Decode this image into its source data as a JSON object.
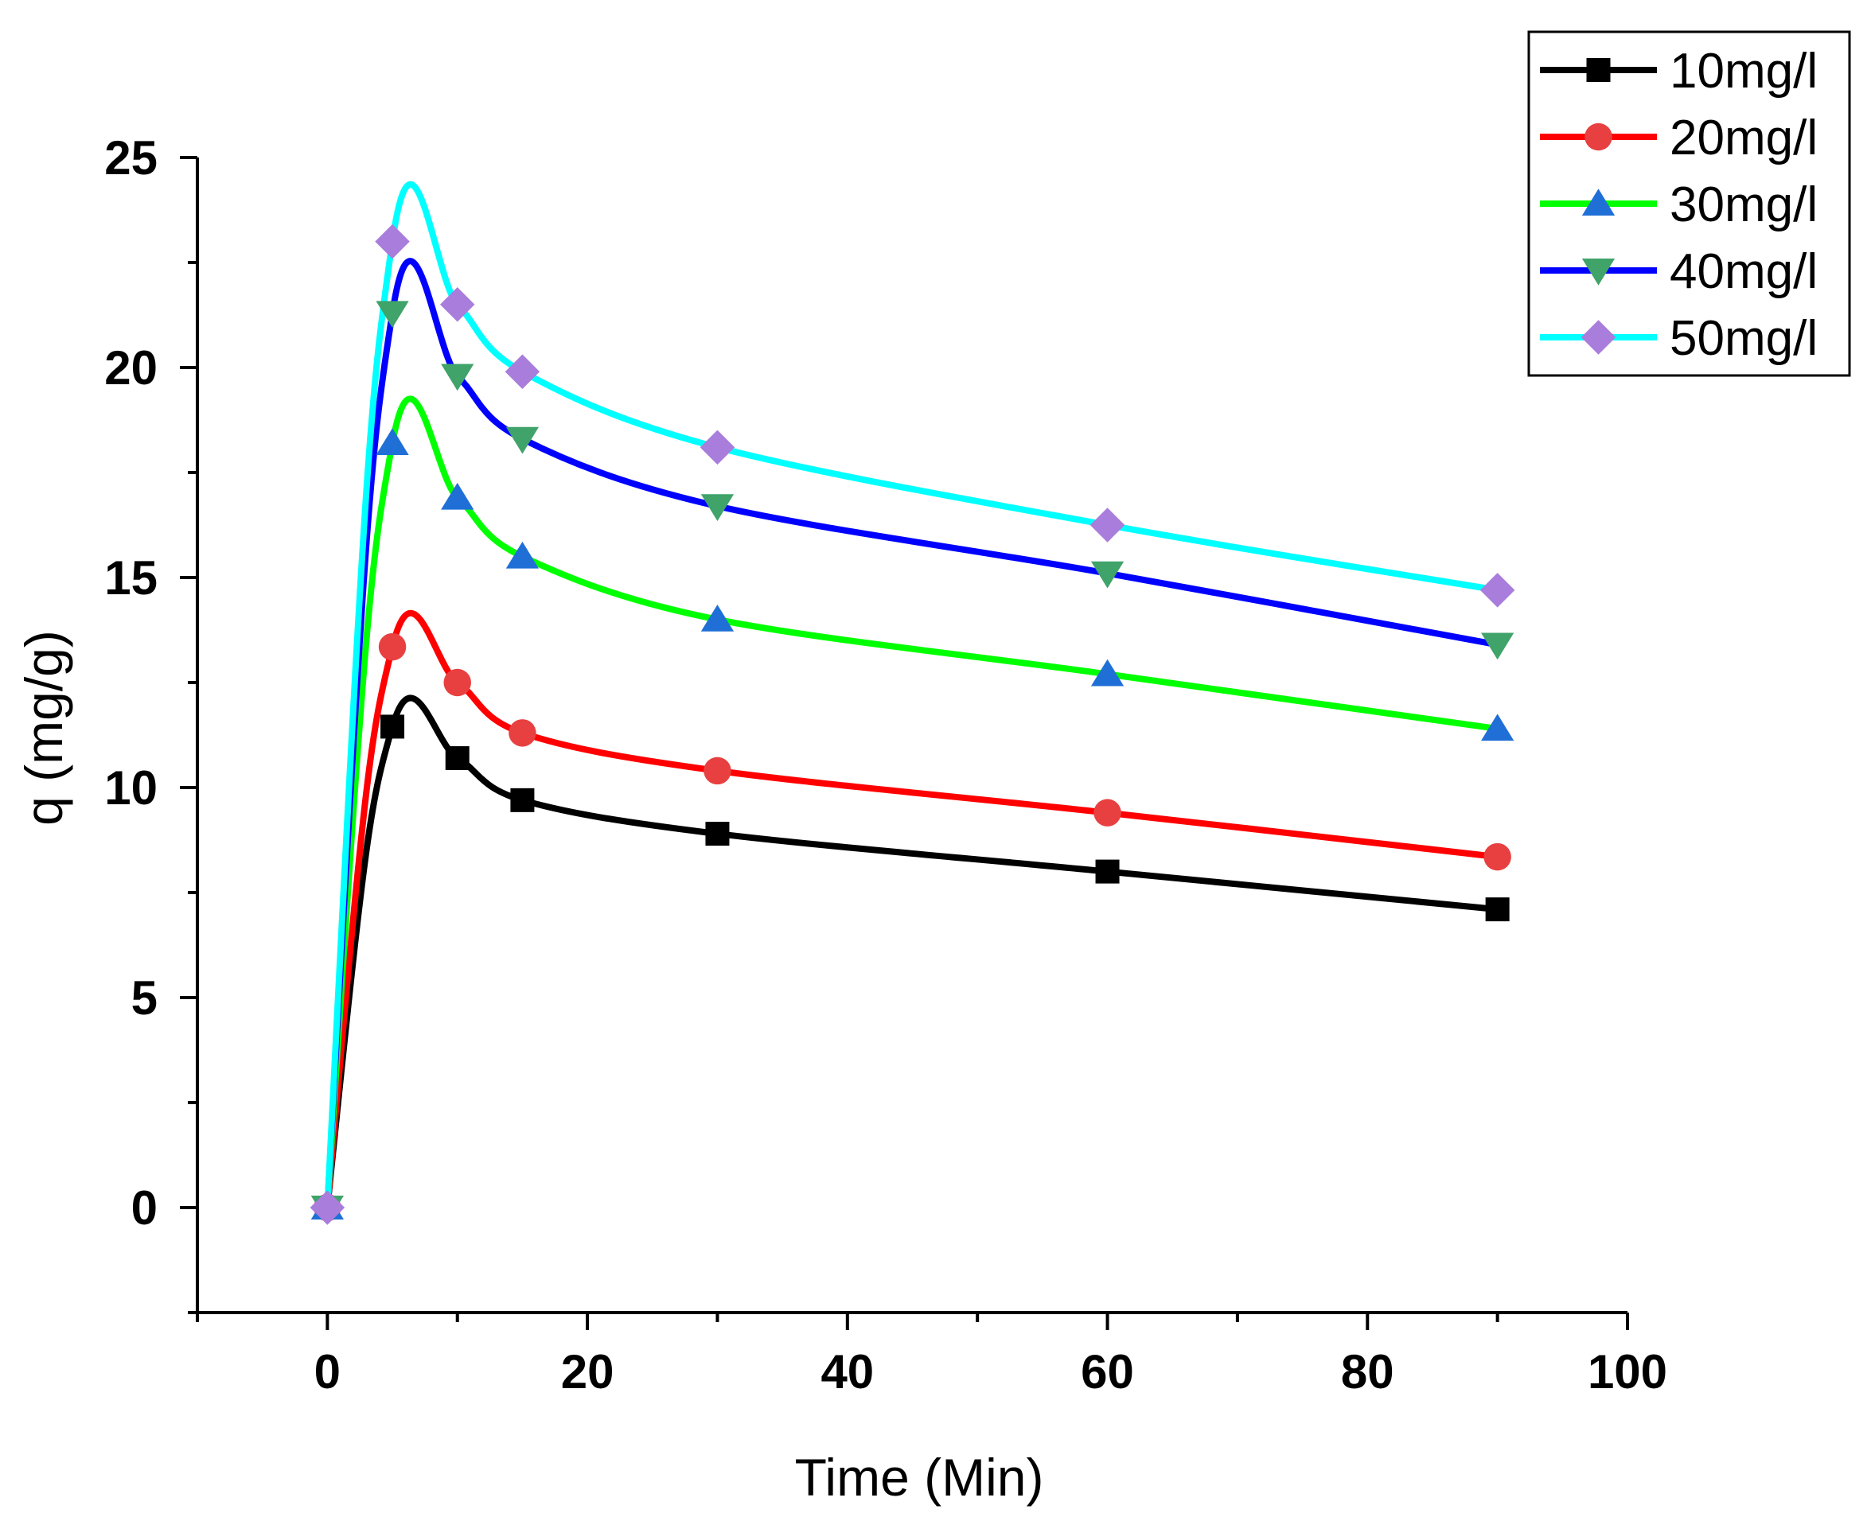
{
  "chart_data": {
    "type": "line",
    "xlabel": "Time (Min)",
    "ylabel": "q (mg/g)",
    "xlim": [
      -10,
      100
    ],
    "ylim": [
      -2.5,
      25
    ],
    "x_ticks": [
      "0",
      "20",
      "40",
      "60",
      "80",
      "100"
    ],
    "x_tick_values": [
      0,
      20,
      40,
      60,
      80,
      100
    ],
    "y_ticks": [
      "0",
      "5",
      "10",
      "15",
      "20",
      "25"
    ],
    "y_tick_values": [
      0,
      5,
      10,
      15,
      20,
      25
    ],
    "legend_position": "top-right",
    "x": [
      0,
      5,
      10,
      15,
      30,
      60,
      90
    ],
    "series": [
      {
        "name": "10mg/l",
        "color": "#000000",
        "marker": "square",
        "marker_color": "#000000",
        "values": [
          0,
          11.45,
          10.7,
          9.7,
          8.9,
          8.0,
          7.1
        ]
      },
      {
        "name": "20mg/l",
        "color": "#ff0000",
        "marker": "circle",
        "marker_color": "#e84040",
        "values": [
          0,
          13.35,
          12.5,
          11.3,
          10.4,
          9.4,
          8.35
        ]
      },
      {
        "name": "30mg/l",
        "color": "#00ff00",
        "marker": "triangle-up",
        "marker_color": "#1f6fd6",
        "values": [
          0,
          18.2,
          16.9,
          15.5,
          14.0,
          12.7,
          11.4
        ]
      },
      {
        "name": "40mg/l",
        "color": "#0000ff",
        "marker": "triangle-down",
        "marker_color": "#3fa36a",
        "values": [
          0,
          21.3,
          19.8,
          18.3,
          16.7,
          15.1,
          13.4
        ]
      },
      {
        "name": "50mg/l",
        "color": "#00ffff",
        "marker": "diamond",
        "marker_color": "#a97ddb",
        "values": [
          0,
          23.0,
          21.5,
          19.9,
          18.1,
          16.25,
          14.7
        ]
      }
    ]
  }
}
